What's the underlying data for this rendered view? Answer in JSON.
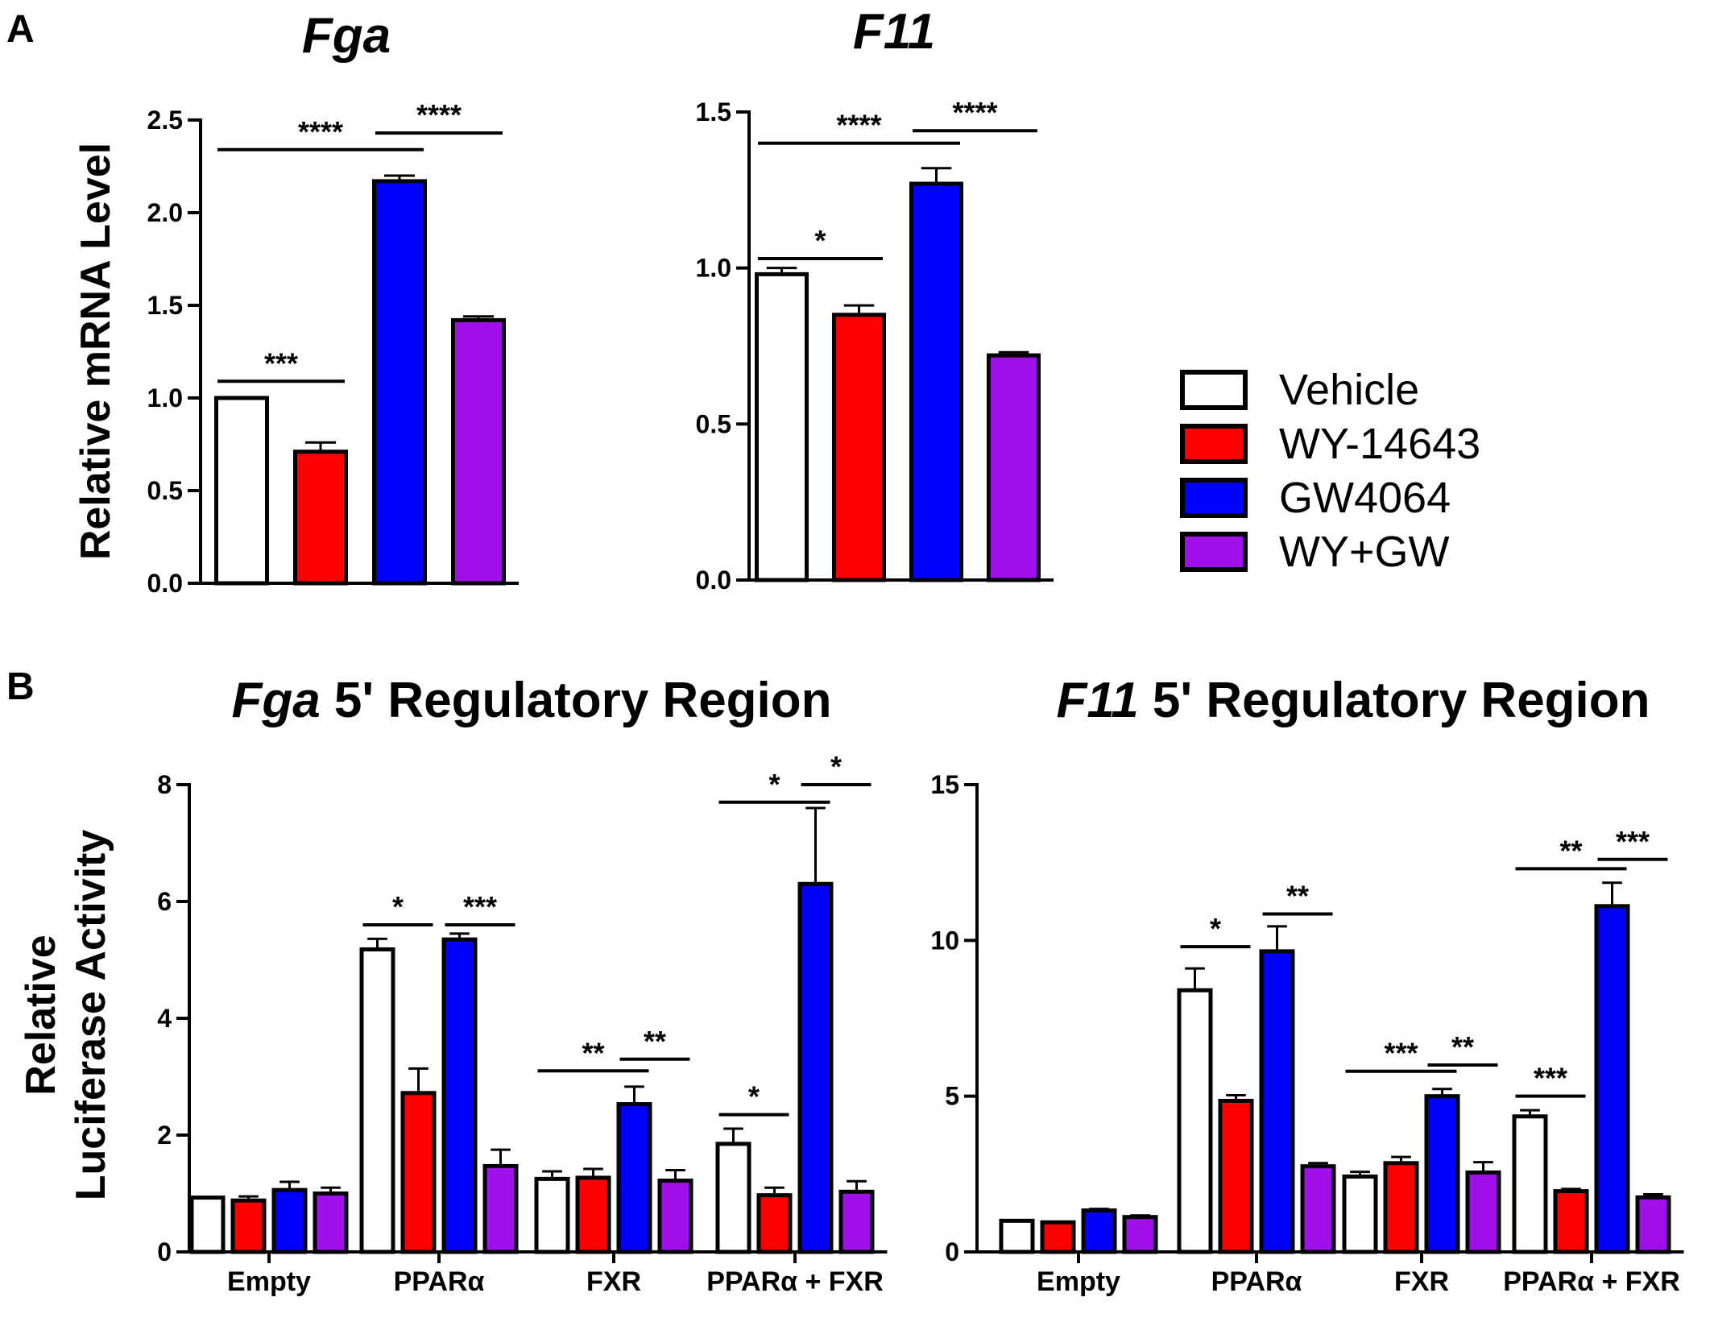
{
  "panel_labels": {
    "a": "A",
    "b": "B"
  },
  "legend": {
    "items": [
      {
        "label": "Vehicle",
        "color": "#ffffff"
      },
      {
        "label": "WY-14643",
        "color": "#ff0000"
      },
      {
        "label": "GW4064",
        "color": "#0000ff"
      },
      {
        "label": "WY+GW",
        "color": "#a010e8"
      }
    ]
  },
  "chart_data": [
    {
      "id": "fga-mrna",
      "type": "bar",
      "title_italic": "Fga",
      "title_rest": "",
      "ylabel_lines": [
        "Relative mRNA Level"
      ],
      "ylim": [
        0,
        2.5
      ],
      "yticks": [
        "0.0",
        "0.5",
        "1.0",
        "1.5",
        "2.0",
        "2.5"
      ],
      "ytick_values": [
        0,
        0.5,
        1.0,
        1.5,
        2.0,
        2.5
      ],
      "categories": [
        ""
      ],
      "series": [
        {
          "name": "Vehicle",
          "values": [
            1.0
          ],
          "errors": [
            0.0
          ]
        },
        {
          "name": "WY-14643",
          "values": [
            0.71
          ],
          "errors": [
            0.05
          ]
        },
        {
          "name": "GW4064",
          "values": [
            2.17
          ],
          "errors": [
            0.03
          ]
        },
        {
          "name": "WY+GW",
          "values": [
            1.42
          ],
          "errors": [
            0.02
          ]
        }
      ],
      "significance": [
        {
          "from": [
            0,
            0
          ],
          "to": [
            0,
            1
          ],
          "label": "***",
          "y": 1.09
        },
        {
          "from": [
            0,
            0
          ],
          "to": [
            0,
            2
          ],
          "label": "****",
          "y": 2.34
        },
        {
          "from": [
            0,
            2
          ],
          "to": [
            0,
            3
          ],
          "label": "****",
          "y": 2.43
        }
      ]
    },
    {
      "id": "f11-mrna",
      "type": "bar",
      "title_italic": "F11",
      "title_rest": "",
      "ylabel_lines": [],
      "ylim": [
        0,
        1.5
      ],
      "yticks": [
        "0.0",
        "0.5",
        "1.0",
        "1.5"
      ],
      "ytick_values": [
        0,
        0.5,
        1.0,
        1.5
      ],
      "categories": [
        ""
      ],
      "series": [
        {
          "name": "Vehicle",
          "values": [
            0.98
          ],
          "errors": [
            0.02
          ]
        },
        {
          "name": "WY-14643",
          "values": [
            0.85
          ],
          "errors": [
            0.03
          ]
        },
        {
          "name": "GW4064",
          "values": [
            1.27
          ],
          "errors": [
            0.05
          ]
        },
        {
          "name": "WY+GW",
          "values": [
            0.72
          ],
          "errors": [
            0.01
          ]
        }
      ],
      "significance": [
        {
          "from": [
            0,
            0
          ],
          "to": [
            0,
            1
          ],
          "label": "*",
          "y": 1.03
        },
        {
          "from": [
            0,
            0
          ],
          "to": [
            0,
            2
          ],
          "label": "****",
          "y": 1.4
        },
        {
          "from": [
            0,
            2
          ],
          "to": [
            0,
            3
          ],
          "label": "****",
          "y": 1.44
        }
      ]
    },
    {
      "id": "fga-luciferase",
      "type": "bar",
      "title_italic": "Fga",
      "title_rest": " 5' Regulatory Region",
      "ylabel_lines": [
        "Relative",
        "Luciferase Activity"
      ],
      "ylim": [
        0,
        8
      ],
      "yticks": [
        "0",
        "2",
        "4",
        "6",
        "8"
      ],
      "ytick_values": [
        0,
        2,
        4,
        6,
        8
      ],
      "categories": [
        "Empty",
        "PPARα",
        "FXR",
        "PPARα + FXR"
      ],
      "series": [
        {
          "name": "Vehicle",
          "values": [
            0.93,
            5.18,
            1.25,
            1.85
          ],
          "errors": [
            0.0,
            0.18,
            0.13,
            0.26
          ]
        },
        {
          "name": "WY-14643",
          "values": [
            0.88,
            2.72,
            1.27,
            0.97
          ],
          "errors": [
            0.07,
            0.42,
            0.15,
            0.13
          ]
        },
        {
          "name": "GW4064",
          "values": [
            1.06,
            5.35,
            2.53,
            6.3
          ],
          "errors": [
            0.14,
            0.1,
            0.3,
            1.3
          ]
        },
        {
          "name": "WY+GW",
          "values": [
            1.0,
            1.47,
            1.22,
            1.03
          ],
          "errors": [
            0.1,
            0.28,
            0.18,
            0.18
          ]
        }
      ],
      "significance": [
        {
          "from": [
            1,
            0
          ],
          "to": [
            1,
            1
          ],
          "label": "*",
          "y": 5.6
        },
        {
          "from": [
            1,
            2
          ],
          "to": [
            1,
            3
          ],
          "label": "***",
          "y": 5.6
        },
        {
          "from": [
            2,
            0
          ],
          "to": [
            2,
            2
          ],
          "label": "**",
          "y": 3.1
        },
        {
          "from": [
            2,
            2
          ],
          "to": [
            2,
            3
          ],
          "label": "**",
          "y": 3.3
        },
        {
          "from": [
            3,
            0
          ],
          "to": [
            3,
            1
          ],
          "label": "*",
          "y": 2.35
        },
        {
          "from": [
            3,
            0
          ],
          "to": [
            3,
            2
          ],
          "label": "*",
          "y": 7.7
        },
        {
          "from": [
            3,
            2
          ],
          "to": [
            3,
            3
          ],
          "label": "*",
          "y": 8.0
        }
      ]
    },
    {
      "id": "f11-luciferase",
      "type": "bar",
      "title_italic": "F11",
      "title_rest": " 5' Regulatory Region",
      "ylabel_lines": [],
      "ylim": [
        0,
        15
      ],
      "yticks": [
        "0",
        "5",
        "10",
        "15"
      ],
      "ytick_values": [
        0,
        5,
        10,
        15
      ],
      "categories": [
        "Empty",
        "PPARα",
        "FXR",
        "PPARα + FXR"
      ],
      "series": [
        {
          "name": "Vehicle",
          "values": [
            1.0,
            8.4,
            2.42,
            4.35
          ],
          "errors": [
            0.0,
            0.7,
            0.15,
            0.2
          ]
        },
        {
          "name": "WY-14643",
          "values": [
            0.95,
            4.85,
            2.85,
            1.95
          ],
          "errors": [
            0.0,
            0.18,
            0.2,
            0.07
          ]
        },
        {
          "name": "GW4064",
          "values": [
            1.33,
            9.65,
            5.0,
            11.1
          ],
          "errors": [
            0.05,
            0.8,
            0.23,
            0.75
          ]
        },
        {
          "name": "WY+GW",
          "values": [
            1.12,
            2.75,
            2.55,
            1.75
          ],
          "errors": [
            0.05,
            0.1,
            0.33,
            0.1
          ]
        }
      ],
      "significance": [
        {
          "from": [
            1,
            0
          ],
          "to": [
            1,
            1
          ],
          "label": "*",
          "y": 9.8
        },
        {
          "from": [
            1,
            2
          ],
          "to": [
            1,
            3
          ],
          "label": "**",
          "y": 10.85
        },
        {
          "from": [
            2,
            0
          ],
          "to": [
            2,
            2
          ],
          "label": "***",
          "y": 5.8
        },
        {
          "from": [
            2,
            2
          ],
          "to": [
            2,
            3
          ],
          "label": "**",
          "y": 6.0
        },
        {
          "from": [
            3,
            0
          ],
          "to": [
            3,
            1
          ],
          "label": "***",
          "y": 5.0
        },
        {
          "from": [
            3,
            0
          ],
          "to": [
            3,
            2
          ],
          "label": "**",
          "y": 12.3
        },
        {
          "from": [
            3,
            2
          ],
          "to": [
            3,
            3
          ],
          "label": "***",
          "y": 12.6
        }
      ]
    }
  ]
}
